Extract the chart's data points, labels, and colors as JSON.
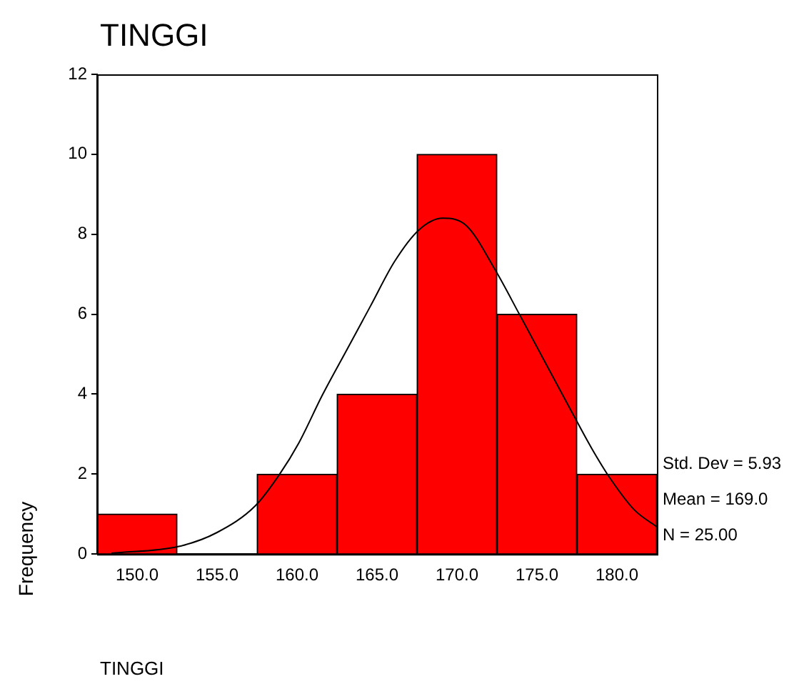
{
  "chart_data": {
    "type": "histogram",
    "title": "TINGGI",
    "xlabel": "TINGGI",
    "ylabel": "Frequency",
    "bins": [
      147.5,
      152.5,
      157.5,
      162.5,
      167.5,
      172.5,
      177.5,
      182.5
    ],
    "values": [
      1,
      0,
      2,
      4,
      10,
      6,
      2
    ],
    "color": "#ff0000",
    "xlim": [
      147.5,
      182.5
    ],
    "xticks": [
      {
        "value": 150,
        "label": "150.0"
      },
      {
        "value": 155,
        "label": "155.0"
      },
      {
        "value": 160,
        "label": "160.0"
      },
      {
        "value": 165,
        "label": "165.0"
      },
      {
        "value": 170,
        "label": "170.0"
      },
      {
        "value": 175,
        "label": "175.0"
      },
      {
        "value": 180,
        "label": "180.0"
      }
    ],
    "ylim": [
      0,
      12
    ],
    "yticks": [
      0,
      2,
      4,
      6,
      8,
      10,
      12
    ],
    "series": [
      {
        "type": "line",
        "color": "#000000",
        "x": [
          148.4,
          152.6,
          155.0,
          157.4,
          158.9,
          160.1,
          161.6,
          163.1,
          164.6,
          166.1,
          167.6,
          169.1,
          170.6,
          172.4,
          173.9,
          175.4,
          177.2,
          178.4,
          179.6,
          181.1,
          182.5
        ],
        "values": [
          0.02,
          0.19,
          0.54,
          1.21,
          1.99,
          2.77,
          3.99,
          5.1,
          6.21,
          7.32,
          8.1,
          8.4,
          8.21,
          7.1,
          6.0,
          4.88,
          3.54,
          2.66,
          1.88,
          1.1,
          0.68
        ]
      }
    ],
    "annotations": [
      "Std. Dev = 5.93",
      "Mean = 169.0",
      "N = 25.00"
    ],
    "grid": false,
    "legend": false
  }
}
